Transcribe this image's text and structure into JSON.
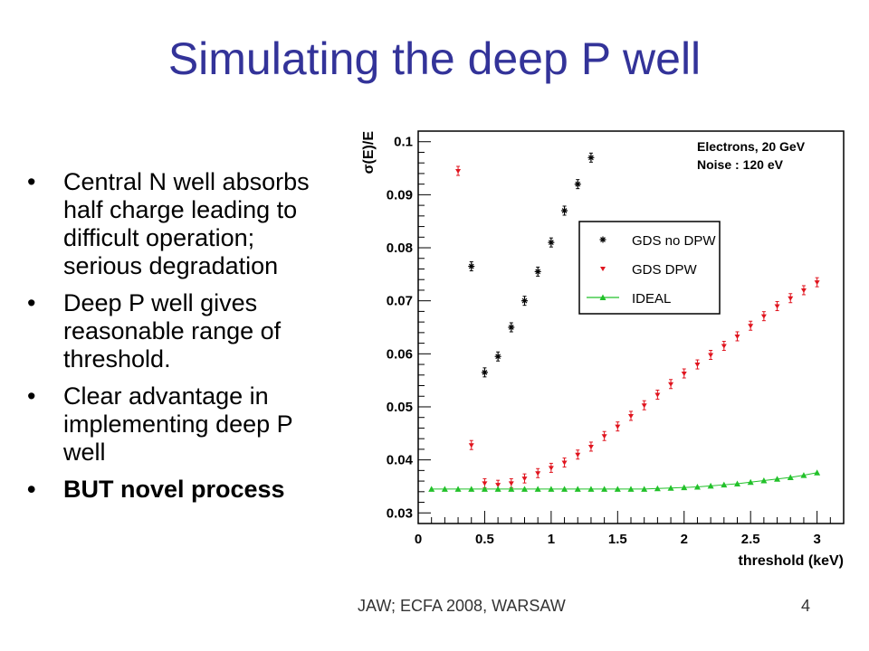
{
  "slide": {
    "title": "Simulating the deep P well",
    "bullets": [
      {
        "text": "Central N well absorbs half charge leading to difficult operation; serious degradation",
        "bold": false
      },
      {
        "text": "Deep P well gives reasonable range of threshold.",
        "bold": false
      },
      {
        "text": "Clear advantage in implementing deep P well",
        "bold": false
      },
      {
        "text": "BUT novel process",
        "bold": true
      }
    ],
    "bullet_glyph": "•",
    "footer": "JAW;     ECFA 2008, WARSAW",
    "page_number": "4"
  },
  "colors": {
    "title": "#333399",
    "series_no_dpw": "#000000",
    "series_dpw": "#e0141e",
    "series_ideal": "#22c12a"
  },
  "chart_data": {
    "type": "scatter",
    "title": "",
    "xlabel": "threshold (keV)",
    "ylabel": "σ(E)/E",
    "xlim": [
      0,
      3.2
    ],
    "ylim": [
      0.028,
      0.102
    ],
    "xticks": [
      "0",
      "0.5",
      "1",
      "1.5",
      "2",
      "2.5",
      "3"
    ],
    "yticks": [
      "0.03",
      "0.04",
      "0.05",
      "0.06",
      "0.07",
      "0.08",
      "0.09",
      "0.1"
    ],
    "annotations": [
      "Electrons, 20 GeV",
      "Noise : 120 eV"
    ],
    "legend_position": "center-right",
    "grid": false,
    "series": [
      {
        "name": "GDS no DPW",
        "marker": "star",
        "x": [
          0.4,
          0.5,
          0.6,
          0.7,
          0.8,
          0.9,
          1.0,
          1.1,
          1.2,
          1.3
        ],
        "y": [
          0.0765,
          0.0565,
          0.0595,
          0.065,
          0.07,
          0.0755,
          0.081,
          0.087,
          0.092,
          0.097
        ]
      },
      {
        "name": "GDS DPW",
        "marker": "triangle-down",
        "x": [
          0.3,
          0.4,
          0.5,
          0.6,
          0.7,
          0.8,
          0.9,
          1.0,
          1.1,
          1.2,
          1.3,
          1.4,
          1.5,
          1.6,
          1.7,
          1.8,
          1.9,
          2.0,
          2.1,
          2.2,
          2.3,
          2.4,
          2.5,
          2.6,
          2.7,
          2.8,
          2.9,
          3.0
        ],
        "y": [
          0.0945,
          0.0428,
          0.0356,
          0.0353,
          0.0356,
          0.0365,
          0.0375,
          0.0385,
          0.0395,
          0.041,
          0.0425,
          0.0445,
          0.0463,
          0.0483,
          0.0503,
          0.0523,
          0.0543,
          0.0563,
          0.058,
          0.0598,
          0.0615,
          0.0633,
          0.0653,
          0.0671,
          0.069,
          0.0705,
          0.072,
          0.0735
        ]
      },
      {
        "name": "IDEAL",
        "marker": "triangle-up",
        "x": [
          0.1,
          0.2,
          0.3,
          0.4,
          0.5,
          0.6,
          0.7,
          0.8,
          0.9,
          1.0,
          1.1,
          1.2,
          1.3,
          1.4,
          1.5,
          1.6,
          1.7,
          1.8,
          1.9,
          2.0,
          2.1,
          2.2,
          2.3,
          2.4,
          2.5,
          2.6,
          2.7,
          2.8,
          2.9,
          3.0
        ],
        "y": [
          0.0345,
          0.0345,
          0.0345,
          0.0345,
          0.0345,
          0.0345,
          0.0345,
          0.0345,
          0.0345,
          0.0345,
          0.0345,
          0.0345,
          0.0345,
          0.0345,
          0.0345,
          0.0345,
          0.0345,
          0.0346,
          0.0347,
          0.0348,
          0.0349,
          0.0351,
          0.0353,
          0.0355,
          0.0358,
          0.0361,
          0.0364,
          0.0367,
          0.0371,
          0.0376
        ]
      }
    ]
  }
}
